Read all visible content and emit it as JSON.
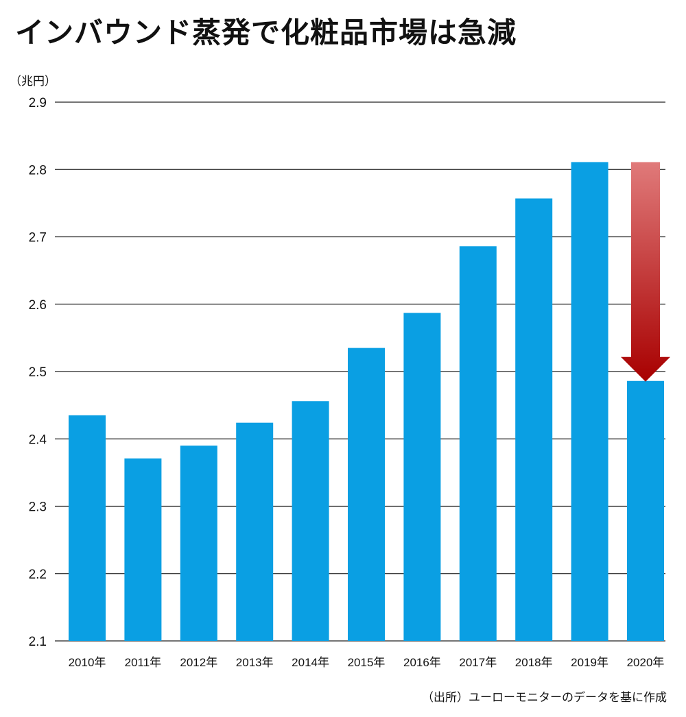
{
  "title": "インバウンド蒸発で化粧品市場は急減",
  "unit_label": "（兆円）",
  "source": "（出所）ユーローモニターのデータを基に作成",
  "colors": {
    "bar": "#0a9fe3",
    "arrow_top": "#e07a7a",
    "arrow_bottom": "#a80000",
    "grid": "#222222"
  },
  "chart_data": {
    "type": "bar",
    "title": "インバウンド蒸発で化粧品市場は急減",
    "ylabel": "（兆円）",
    "xlabel": "",
    "ylim": [
      2.1,
      2.9
    ],
    "yticks": [
      "2.1",
      "2.2",
      "2.3",
      "2.4",
      "2.5",
      "2.6",
      "2.7",
      "2.8",
      "2.9"
    ],
    "categories": [
      "2010年",
      "2011年",
      "2012年",
      "2013年",
      "2014年",
      "2015年",
      "2016年",
      "2017年",
      "2018年",
      "2019年",
      "2020年"
    ],
    "values": [
      2.435,
      2.371,
      2.39,
      2.424,
      2.456,
      2.535,
      2.587,
      2.686,
      2.757,
      2.811,
      2.486
    ],
    "grid": true,
    "annotation": {
      "type": "arrow",
      "from_category": "2020年",
      "from_value": 2.811,
      "to_value": 2.486
    }
  }
}
